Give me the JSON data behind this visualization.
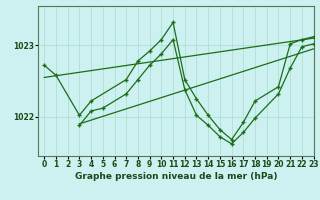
{
  "bg_color": "#cdf0f0",
  "grid_color": "#aaddcc",
  "line_color": "#1a6e1a",
  "title": "Graphe pression niveau de la mer (hPa)",
  "xlim": [
    -0.5,
    23
  ],
  "ylim": [
    1021.45,
    1023.55
  ],
  "yticks": [
    1022,
    1023
  ],
  "xticks": [
    0,
    1,
    2,
    3,
    4,
    5,
    6,
    7,
    8,
    9,
    10,
    11,
    12,
    13,
    14,
    15,
    16,
    17,
    18,
    19,
    20,
    21,
    22,
    23
  ],
  "trend1_x": [
    0,
    23
  ],
  "trend1_y": [
    1022.55,
    1023.1
  ],
  "trend2_x": [
    3,
    23
  ],
  "trend2_y": [
    1021.9,
    1022.95
  ],
  "jagged1_x": [
    0,
    1,
    3,
    4,
    7,
    8,
    9,
    10,
    11,
    12,
    13,
    14,
    15,
    16,
    17,
    18,
    20,
    21,
    22,
    23
  ],
  "jagged1_y": [
    1022.72,
    1022.58,
    1022.02,
    1022.22,
    1022.52,
    1022.78,
    1022.92,
    1023.08,
    1023.32,
    1022.52,
    1022.25,
    1022.02,
    1021.82,
    1021.68,
    1021.92,
    1022.22,
    1022.42,
    1023.02,
    1023.08,
    1023.12
  ],
  "jagged2_x": [
    3,
    4,
    5,
    7,
    8,
    9,
    10,
    11,
    12,
    13,
    14,
    15,
    16,
    17,
    18,
    20,
    21,
    22,
    23
  ],
  "jagged2_y": [
    1021.88,
    1022.08,
    1022.12,
    1022.32,
    1022.52,
    1022.72,
    1022.88,
    1023.08,
    1022.38,
    1022.02,
    1021.88,
    1021.72,
    1021.62,
    1021.78,
    1021.98,
    1022.32,
    1022.68,
    1022.98,
    1023.02
  ]
}
